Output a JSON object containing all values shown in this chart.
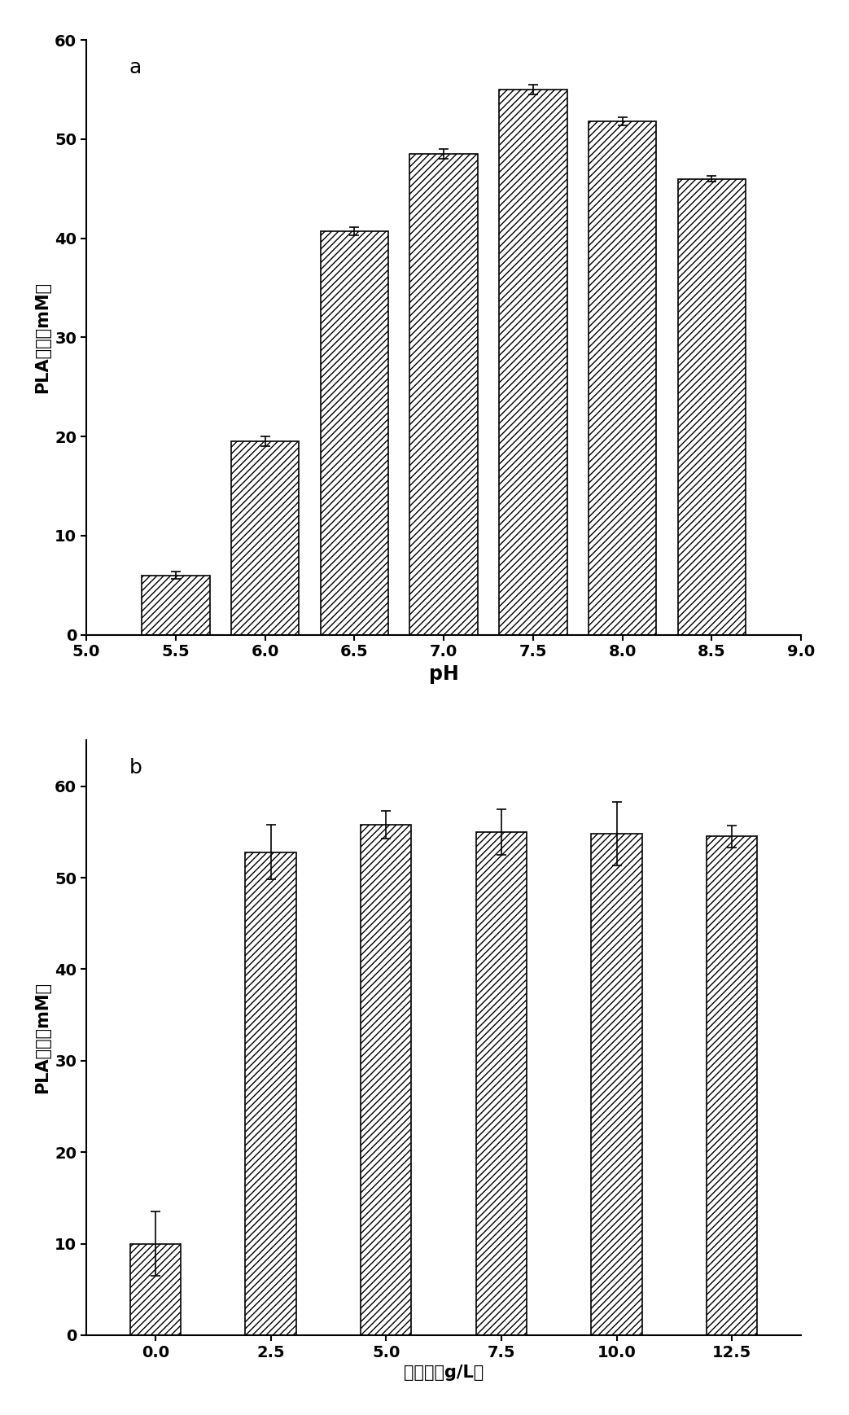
{
  "chart_a": {
    "label": "a",
    "x_values": [
      5.5,
      6.0,
      6.5,
      7.0,
      7.5,
      8.0,
      8.5
    ],
    "y_values": [
      6.0,
      19.5,
      40.7,
      48.5,
      55.0,
      51.8,
      46.0
    ],
    "y_errors": [
      0.4,
      0.5,
      0.4,
      0.5,
      0.5,
      0.4,
      0.3
    ],
    "xlabel": "pH",
    "ylabel_parts": [
      "PLA",
      "产量",
      "（mM）"
    ],
    "ylabel_plain": "PLA产量（mM）",
    "xlim": [
      5.0,
      9.0
    ],
    "ylim": [
      0,
      60
    ],
    "xticks": [
      5.0,
      5.5,
      6.0,
      6.5,
      7.0,
      7.5,
      8.0,
      8.5,
      9.0
    ],
    "yticks": [
      0,
      10,
      20,
      30,
      40,
      50,
      60
    ],
    "bar_width": 0.38,
    "hatch": "////",
    "bar_color": "white",
    "bar_edgecolor": "black"
  },
  "chart_b": {
    "label": "b",
    "x_labels": [
      "0.0",
      "2.5",
      "5.0",
      "7.5",
      "10.0",
      "12.5"
    ],
    "x_positions": [
      0.0,
      2.5,
      5.0,
      7.5,
      10.0,
      12.5
    ],
    "y_values": [
      10.0,
      52.8,
      55.8,
      55.0,
      54.8,
      54.5
    ],
    "y_errors": [
      3.5,
      3.0,
      1.5,
      2.5,
      3.5,
      1.2
    ],
    "xlabel_parts": [
      "葡萄糖（g/L）"
    ],
    "xlabel_plain": "葡萄糖（g/L）",
    "ylabel_plain": "PLA产量（mM）",
    "xlim": [
      -1.5,
      14.0
    ],
    "ylim": [
      0,
      65
    ],
    "yticks": [
      0,
      10,
      20,
      30,
      40,
      50,
      60
    ],
    "bar_width": 1.1,
    "hatch": "////",
    "bar_color": "white",
    "bar_edgecolor": "black"
  },
  "figure_bg": "white",
  "font_size_label": 15,
  "font_size_tick": 14,
  "font_size_annot": 18,
  "font_weight_tick": "bold",
  "font_weight_label": "bold"
}
